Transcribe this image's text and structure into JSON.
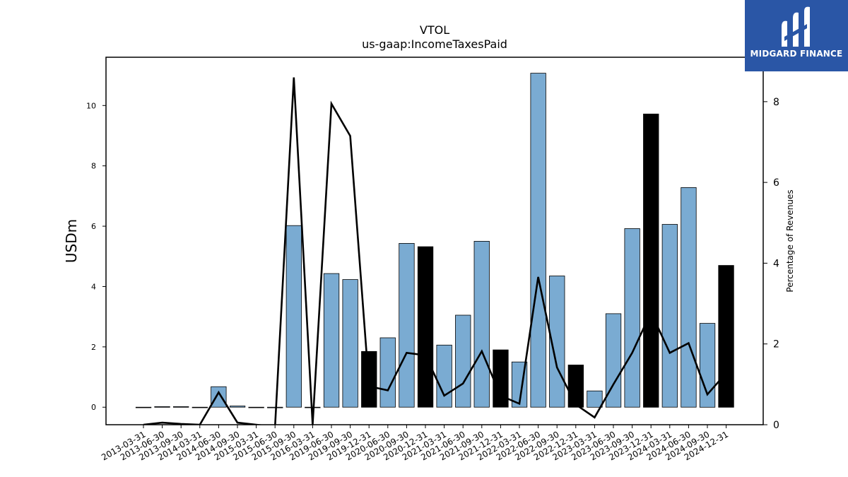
{
  "chart_data": {
    "type": "bar",
    "title": "VTOL",
    "subtitle": "us-gaap:IncomeTaxesPaid",
    "ylabel": "USDm",
    "ylabel_right": "Percentage of Revenues",
    "ylim": [
      -0.58,
      11.6
    ],
    "ylim_right": [
      0,
      9.1
    ],
    "yticks": [
      0,
      2,
      4,
      6,
      8,
      10
    ],
    "yticks_right": [
      0,
      2,
      4,
      6,
      8
    ],
    "categories": [
      "2013-03-31",
      "2013-06-30",
      "2013-09-30",
      "2014-03-31",
      "2014-06-30",
      "2014-09-30",
      "2015-03-31",
      "2015-06-30",
      "2015-09-30",
      "2016-03-31",
      "2019-06-30",
      "2019-09-30",
      "2019-12-31",
      "2020-06-30",
      "2020-09-30",
      "2020-12-31",
      "2021-03-31",
      "2021-06-30",
      "2021-09-30",
      "2021-12-31",
      "2022-03-31",
      "2022-06-30",
      "2022-09-30",
      "2022-12-31",
      "2023-03-31",
      "2023-06-30",
      "2023-09-30",
      "2023-12-31",
      "2024-03-31",
      "2024-06-30",
      "2024-09-30",
      "2024-12-31"
    ],
    "series": [
      {
        "role": "bars",
        "values": [
          0.0,
          0.02,
          0.02,
          0.0,
          0.68,
          0.04,
          0.0,
          -0.02,
          6.02,
          0.0,
          4.43,
          4.23,
          1.85,
          2.3,
          5.43,
          5.32,
          2.06,
          3.05,
          5.5,
          1.9,
          1.5,
          11.07,
          4.35,
          1.4,
          0.54,
          3.1,
          5.92,
          9.72,
          6.06,
          7.28,
          2.78,
          4.7
        ],
        "highlight": [
          false,
          false,
          false,
          false,
          false,
          false,
          false,
          false,
          false,
          false,
          false,
          false,
          true,
          false,
          false,
          true,
          false,
          false,
          false,
          true,
          false,
          false,
          false,
          true,
          false,
          false,
          false,
          true,
          false,
          false,
          false,
          true
        ]
      },
      {
        "role": "line",
        "axis": "right",
        "values": [
          0.0,
          0.05,
          0.02,
          0.0,
          0.8,
          0.05,
          0.0,
          -0.05,
          8.6,
          0.0,
          7.95,
          7.15,
          0.95,
          0.85,
          1.78,
          1.72,
          0.72,
          1.02,
          1.82,
          0.72,
          0.52,
          3.66,
          1.42,
          0.5,
          0.18,
          1.0,
          1.78,
          2.78,
          1.78,
          2.02,
          0.75,
          1.28
        ]
      }
    ],
    "colors": {
      "bar": "#7aabd2",
      "bar_highlight": "#000000",
      "line": "#000000"
    },
    "grid": false
  },
  "logo": {
    "text": "MIDGARD FINANCE",
    "background": "#2a56a6"
  }
}
